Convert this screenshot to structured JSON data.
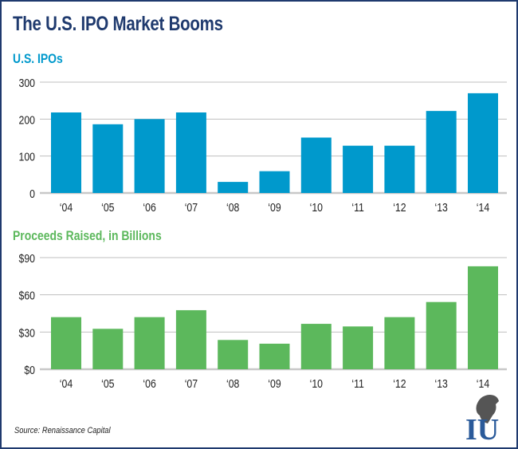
{
  "title": "The U.S. IPO Market Booms",
  "source": "Source: Renaissance Capital",
  "logo_text": "IU",
  "colors": {
    "title": "#1f3a6e",
    "ipo": "#0099cc",
    "proceeds": "#5cb85c",
    "grid": "#bfbfbf"
  },
  "chart_data": [
    {
      "type": "bar",
      "title": "U.S. IPOs",
      "categories": [
        "‘04",
        "‘05",
        "‘06",
        "‘07",
        "‘08",
        "‘09",
        "‘10",
        "‘11",
        "‘12",
        "‘13",
        "‘14"
      ],
      "values": [
        218,
        186,
        200,
        218,
        30,
        59,
        150,
        128,
        128,
        222,
        270
      ],
      "yticks": [
        0,
        100,
        200,
        300
      ],
      "ytick_labels": [
        "0",
        "100",
        "200",
        "300"
      ],
      "ylim": [
        0,
        300
      ],
      "grid": true,
      "xlabel": "",
      "ylabel": ""
    },
    {
      "type": "bar",
      "title": "Proceeds Raised, in Billions",
      "categories": [
        "‘04",
        "‘05",
        "‘06",
        "‘07",
        "‘08",
        "‘09",
        "‘10",
        "‘11",
        "‘12",
        "‘13",
        "‘14"
      ],
      "values": [
        42,
        32.6,
        42,
        47.6,
        23.6,
        20.6,
        36.6,
        34.5,
        42,
        54.2,
        83
      ],
      "yticks": [
        0,
        30,
        60,
        90
      ],
      "ytick_labels": [
        "$0",
        "$30",
        "$60",
        "$90"
      ],
      "ylim": [
        0,
        90
      ],
      "grid": true,
      "xlabel": "",
      "ylabel": ""
    }
  ]
}
